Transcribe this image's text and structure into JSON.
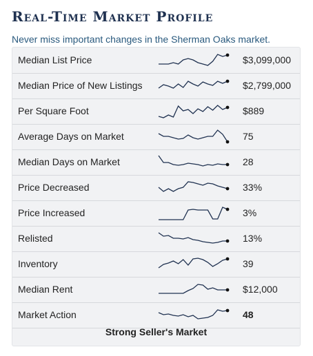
{
  "header": {
    "title": "Real-Time Market Profile",
    "subtitle": "Never miss important changes in the Sherman Oaks market."
  },
  "colors": {
    "sparkline": "#1f3150",
    "title": "#1f3150",
    "subtitle": "#2a5a7e"
  },
  "metrics": [
    {
      "label": "Median List Price",
      "value": "$3,099,000",
      "bold": false,
      "trend": [
        0.2,
        0.2,
        0.2,
        0.3,
        0.2,
        0.5,
        0.6,
        0.5,
        0.3,
        0.2,
        0.1,
        0.4,
        0.9,
        0.75,
        0.85
      ]
    },
    {
      "label": "Median Price of New Listings",
      "value": "$2,799,000",
      "bold": false,
      "trend": [
        0.3,
        0.55,
        0.45,
        0.3,
        0.6,
        0.35,
        0.8,
        0.6,
        0.45,
        0.75,
        0.6,
        0.5,
        0.8,
        0.65,
        0.8
      ]
    },
    {
      "label": "Per Square Foot",
      "value": "$889",
      "bold": false,
      "trend": [
        0.1,
        0.0,
        0.2,
        0.05,
        0.85,
        0.5,
        0.6,
        0.3,
        0.65,
        0.45,
        0.8,
        0.55,
        0.9,
        0.6,
        0.75
      ]
    },
    {
      "label": "Average Days on Market",
      "value": "75",
      "bold": false,
      "trend": [
        0.7,
        0.5,
        0.5,
        0.4,
        0.3,
        0.35,
        0.6,
        0.4,
        0.3,
        0.4,
        0.5,
        0.5,
        0.95,
        0.65,
        0.1
      ]
    },
    {
      "label": "Median Days on Market",
      "value": "28",
      "bold": false,
      "trend": [
        0.95,
        0.45,
        0.45,
        0.3,
        0.25,
        0.3,
        0.4,
        0.35,
        0.3,
        0.2,
        0.3,
        0.25,
        0.35,
        0.3,
        0.3
      ]
    },
    {
      "label": "Price Decreased",
      "value": "33%",
      "bold": false,
      "trend": [
        0.5,
        0.2,
        0.4,
        0.2,
        0.4,
        0.5,
        0.9,
        0.85,
        0.75,
        0.65,
        0.8,
        0.75,
        0.6,
        0.5,
        0.4
      ]
    },
    {
      "label": "Price Increased",
      "value": "3%",
      "bold": false,
      "trend": [
        0.0,
        0.0,
        0.0,
        0.0,
        0.0,
        0.0,
        0.7,
        0.75,
        0.7,
        0.7,
        0.7,
        0.05,
        0.05,
        0.9,
        0.75
      ]
    },
    {
      "label": "Relisted",
      "value": "13%",
      "bold": false,
      "trend": [
        0.9,
        0.65,
        0.7,
        0.5,
        0.5,
        0.45,
        0.55,
        0.4,
        0.35,
        0.25,
        0.2,
        0.15,
        0.2,
        0.3,
        0.3
      ]
    },
    {
      "label": "Inventory",
      "value": "39",
      "bold": false,
      "trend": [
        0.2,
        0.45,
        0.55,
        0.7,
        0.5,
        0.8,
        0.4,
        0.85,
        0.9,
        0.8,
        0.6,
        0.3,
        0.5,
        0.75,
        0.85
      ]
    },
    {
      "label": "Median Rent",
      "value": "$12,000",
      "bold": false,
      "trend": [
        0.2,
        0.2,
        0.2,
        0.2,
        0.2,
        0.2,
        0.4,
        0.55,
        0.85,
        0.8,
        0.5,
        0.6,
        0.45,
        0.45,
        0.45
      ]
    },
    {
      "label": "Market Action",
      "value": "48",
      "bold": true,
      "trend": [
        0.65,
        0.5,
        0.55,
        0.45,
        0.4,
        0.5,
        0.35,
        0.45,
        0.2,
        0.25,
        0.3,
        0.45,
        0.85,
        0.75,
        0.8
      ]
    }
  ],
  "verdict": "Strong Seller's Market"
}
